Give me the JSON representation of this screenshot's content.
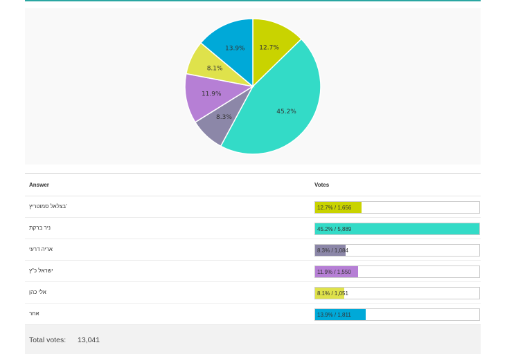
{
  "table": {
    "answer_header": "Answer",
    "votes_header": "Votes",
    "rows": [
      {
        "answer": "בצלאל סמוטריץ'",
        "label": "12.7% / 1,656",
        "percent": 12.7,
        "votes": 1656,
        "color": "#c9d300"
      },
      {
        "answer": "ניר ברקת",
        "label": "45.2% / 5,889",
        "percent": 45.2,
        "votes": 5889,
        "color": "#33dbc7"
      },
      {
        "answer": "אריה דרעי",
        "label": "8.3% / 1,084",
        "percent": 8.3,
        "votes": 1084,
        "color": "#8c87a8"
      },
      {
        "answer": "ישראל כ\"ץ",
        "label": "11.9% / 1,550",
        "percent": 11.9,
        "votes": 1550,
        "color": "#b67fd5"
      },
      {
        "answer": "אלי כהן",
        "label": "8.1% / 1,051",
        "percent": 8.1,
        "votes": 1051,
        "color": "#dfe24b"
      },
      {
        "answer": "אחר",
        "label": "13.9% / 1,811",
        "percent": 13.9,
        "votes": 1811,
        "color": "#00a9d8"
      }
    ]
  },
  "total": {
    "label": "Total votes:",
    "value": "13,041"
  },
  "chart_data": {
    "type": "pie",
    "slices": [
      {
        "label": "12.7%",
        "value": 12.7,
        "color": "#c9d300"
      },
      {
        "label": "45.2%",
        "value": 45.2,
        "color": "#33dbc7"
      },
      {
        "label": "8.3%",
        "value": 8.3,
        "color": "#8c87a8"
      },
      {
        "label": "11.9%",
        "value": 11.9,
        "color": "#b67fd5"
      },
      {
        "label": "8.1%",
        "value": 8.1,
        "color": "#dfe24b"
      },
      {
        "label": "13.9%",
        "value": 13.9,
        "color": "#00a9d8"
      }
    ],
    "start": "12 o'clock",
    "direction": "clockwise"
  }
}
